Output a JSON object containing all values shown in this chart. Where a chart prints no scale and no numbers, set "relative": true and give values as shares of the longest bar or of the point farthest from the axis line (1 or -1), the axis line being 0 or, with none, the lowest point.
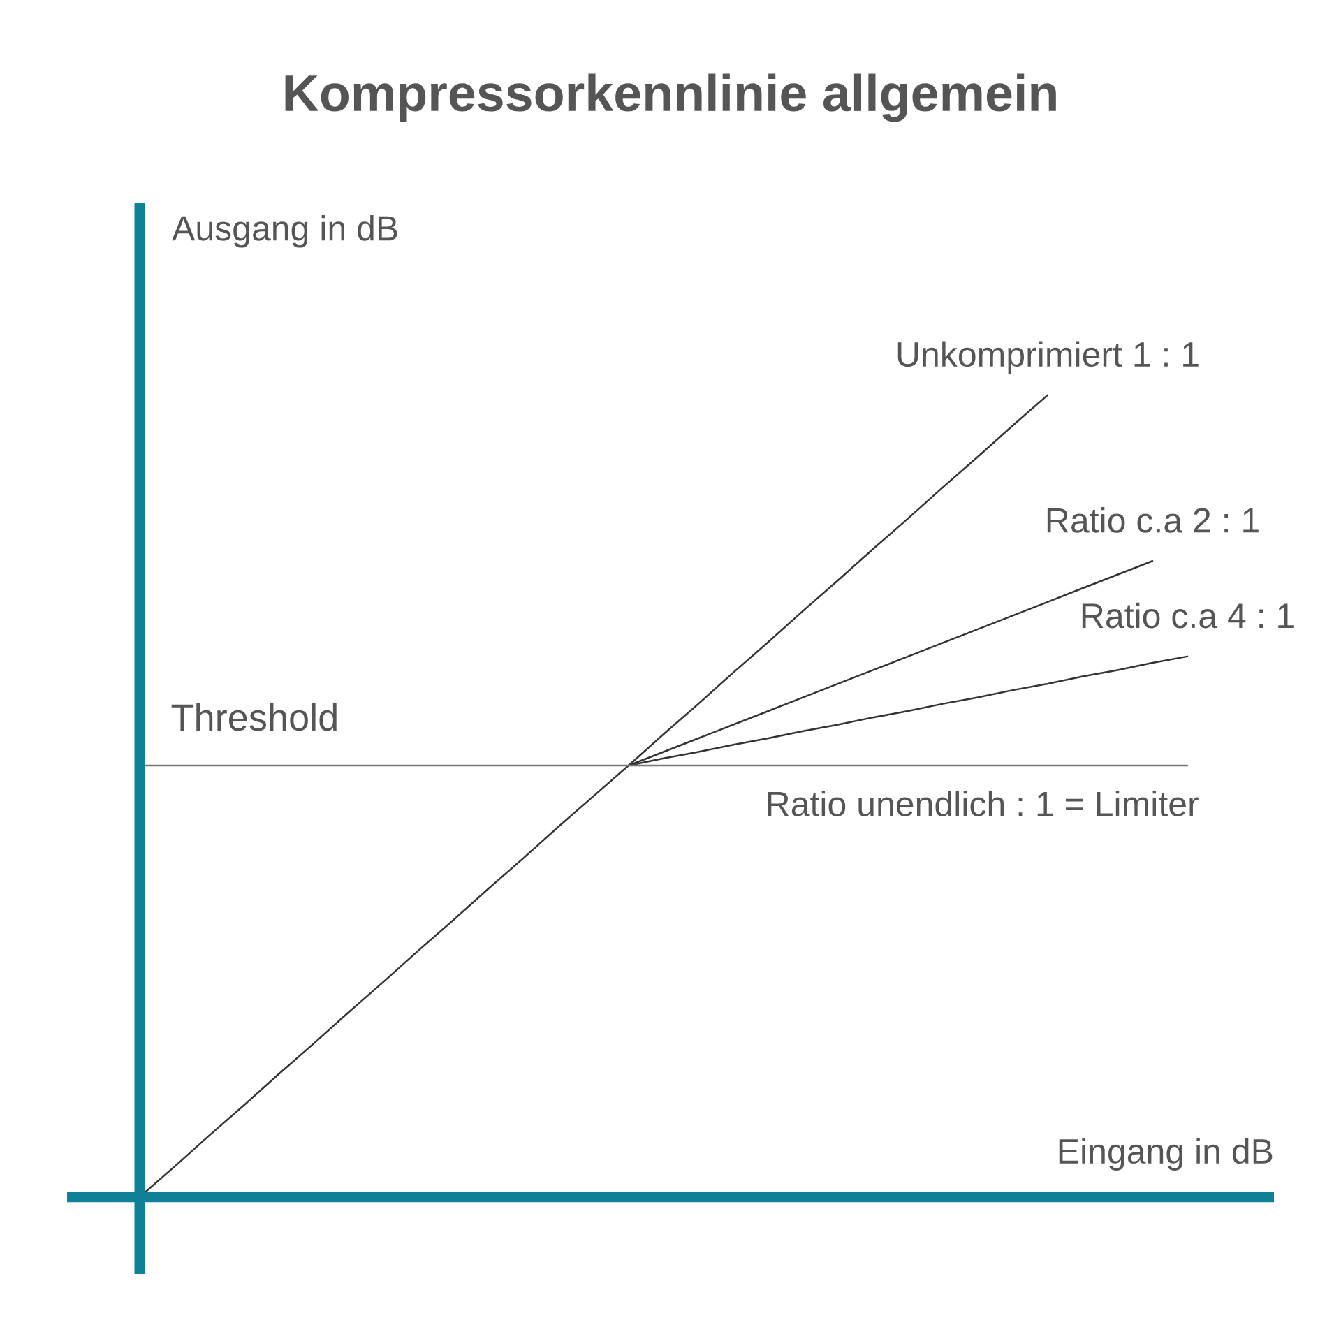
{
  "chart_data": {
    "type": "line",
    "title": "Kompressorkennlinie allgemein",
    "xlabel": "Eingang in dB",
    "ylabel": "Ausgang in dB",
    "relative": true,
    "categories": [
      null,
      null,
      null,
      null,
      null,
      null,
      null,
      null,
      null,
      null,
      null,
      null,
      null,
      null,
      null,
      null,
      null,
      null,
      null,
      null,
      null,
      null,
      null,
      null,
      null,
      null,
      null,
      null,
      null,
      null,
      null
    ],
    "series": [
      {
        "name": "Unkomprimiert 1 : 1",
        "color": "#333333",
        "values": [
          0,
          0.038,
          0.077,
          0.115,
          0.154,
          0.192,
          0.231,
          0.269,
          0.308,
          0.346,
          0.385,
          0.423,
          0.462,
          0.5,
          0.538,
          0.577,
          0.615,
          0.654,
          0.692,
          0.731,
          0.769,
          0.808,
          0.846,
          0.885,
          0.923,
          0.962,
          1,
          null,
          null,
          null,
          null
        ]
      },
      {
        "name": "Ratio c.a 2 : 1",
        "color": "#333333",
        "values": [
          null,
          null,
          null,
          null,
          null,
          null,
          null,
          null,
          null,
          null,
          null,
          null,
          null,
          null,
          0.538,
          0.555,
          0.572,
          0.589,
          0.606,
          0.623,
          0.64,
          0.657,
          0.674,
          0.691,
          0.708,
          0.725,
          0.742,
          0.759,
          0.776,
          0.793,
          null
        ]
      },
      {
        "name": "Ratio c.a 4 : 1",
        "color": "#333333",
        "values": [
          null,
          null,
          null,
          null,
          null,
          null,
          null,
          null,
          null,
          null,
          null,
          null,
          null,
          null,
          0.538,
          0.547,
          0.555,
          0.564,
          0.572,
          0.581,
          0.589,
          0.598,
          0.606,
          0.615,
          0.623,
          0.632,
          0.64,
          0.649,
          0.657,
          0.666,
          0.674
        ]
      },
      {
        "name": "Ratio unendlich : 1 = Limiter",
        "color": "#777777",
        "values": [
          0.538,
          0.538,
          0.538,
          0.538,
          0.538,
          0.538,
          0.538,
          0.538,
          0.538,
          0.538,
          0.538,
          0.538,
          0.538,
          0.538,
          0.538,
          0.538,
          0.538,
          0.538,
          0.538,
          0.538,
          0.538,
          0.538,
          0.538,
          0.538,
          0.538,
          0.538,
          0.538,
          0.538,
          0.538,
          0.538,
          0.538
        ]
      }
    ],
    "annotations": [
      {
        "text": "Threshold",
        "y": 0.538
      }
    ]
  }
}
